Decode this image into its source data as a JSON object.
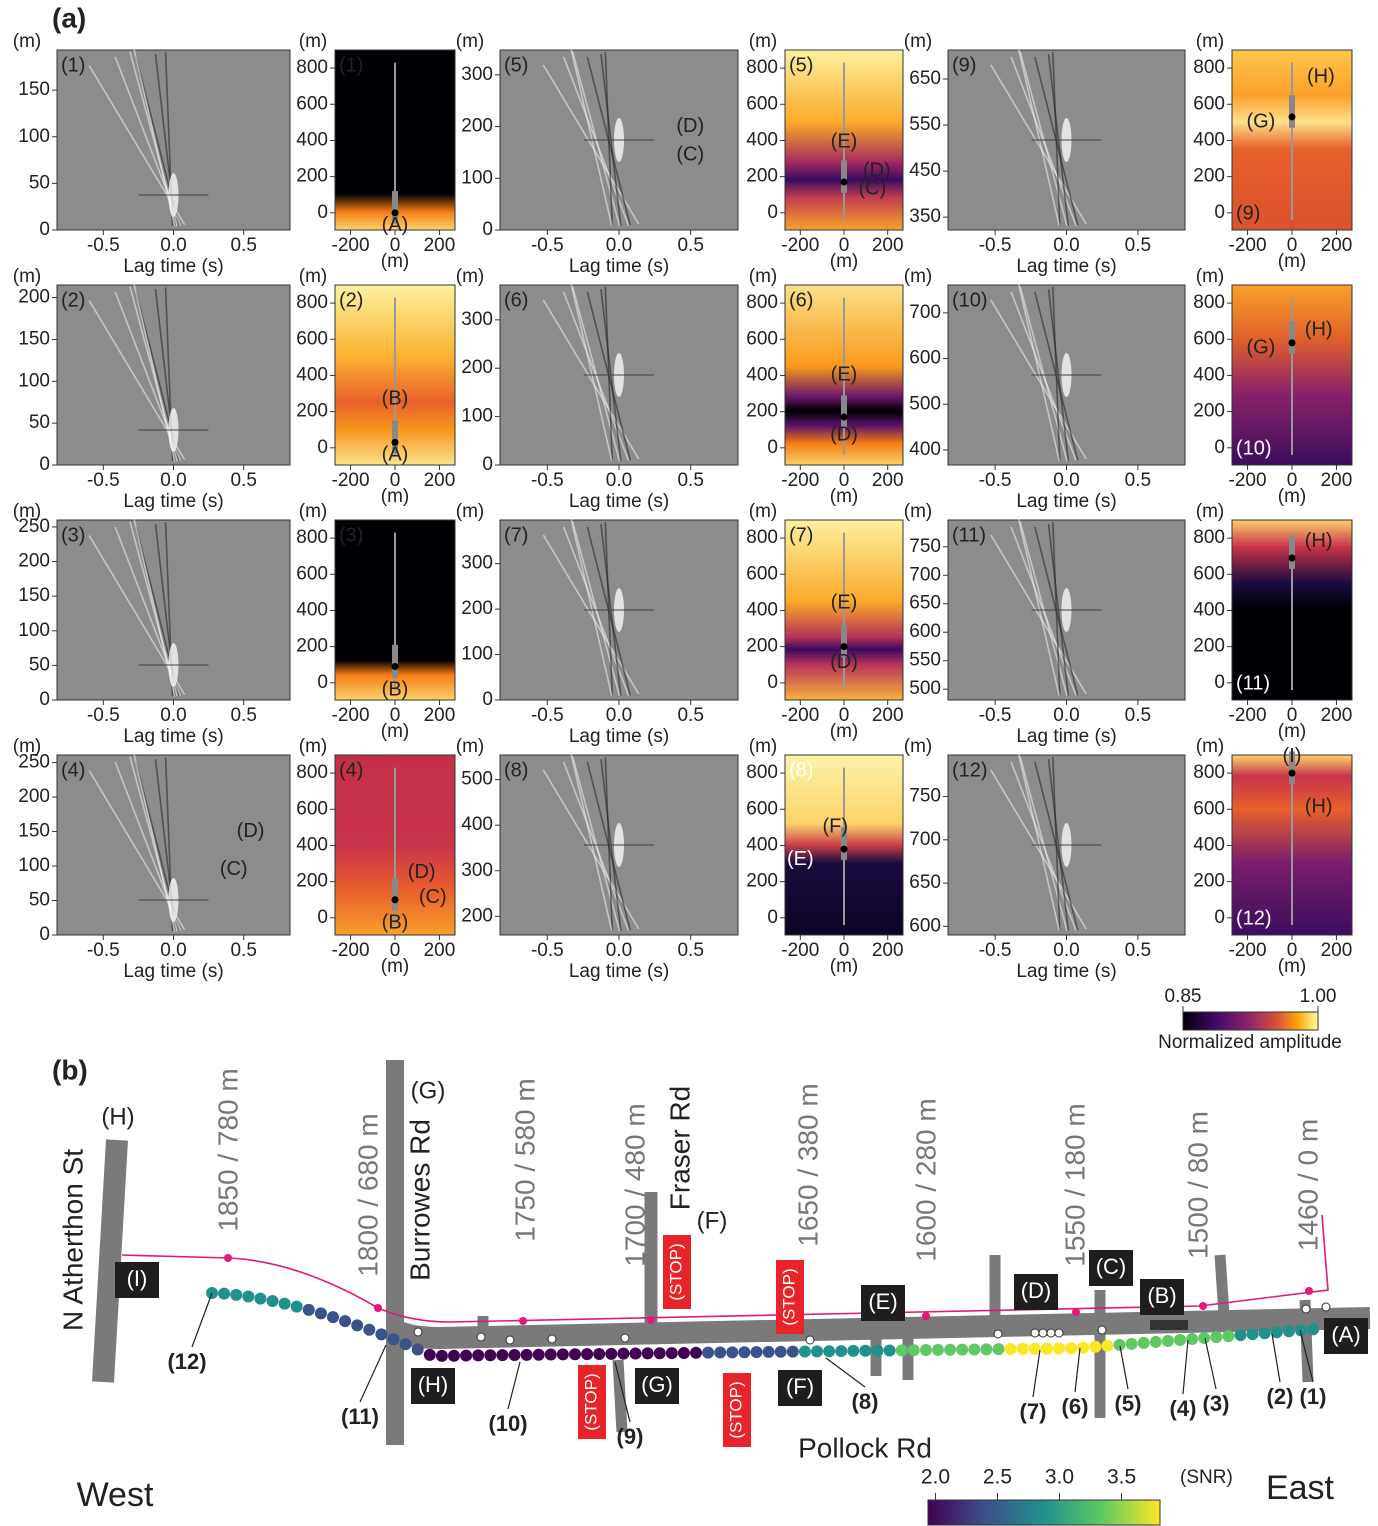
{
  "figure_a": {
    "label": "(a)",
    "x_label": "Lag time (s)",
    "unit": "(m)",
    "xlim": [
      -0.83,
      0.83
    ],
    "xticks": [
      {
        "value": -0.5,
        "label": "-0.5"
      },
      {
        "value": 0,
        "label": "0.0"
      },
      {
        "value": 0.5,
        "label": "0.5"
      }
    ],
    "map_xlim": [
      -270,
      270
    ],
    "map_xticks": [
      -200,
      0,
      200
    ],
    "map_ylim": [
      -95,
      900
    ],
    "map_yticks": [
      0,
      200,
      400,
      600,
      800
    ],
    "panels": [
      {
        "id": "(1)",
        "ylim": [
          0,
          193
        ],
        "yticks": [
          0,
          50,
          100,
          150
        ],
        "wave_labels": [],
        "map_labels": [
          "(A)"
        ]
      },
      {
        "id": "(2)",
        "ylim": [
          0,
          215
        ],
        "yticks": [
          0,
          50,
          100,
          150,
          200
        ],
        "wave_labels": [],
        "map_labels": [
          "(B)",
          "(A)"
        ]
      },
      {
        "id": "(3)",
        "ylim": [
          0,
          260
        ],
        "yticks": [
          0,
          50,
          100,
          150,
          200,
          250
        ],
        "wave_labels": [],
        "map_labels": [
          "(B)"
        ]
      },
      {
        "id": "(4)",
        "ylim": [
          0,
          261
        ],
        "yticks": [
          0,
          50,
          100,
          150,
          200,
          250
        ],
        "wave_labels": [
          "(D)",
          "(C)"
        ],
        "map_labels": [
          "(D)",
          "(C)",
          "(B)"
        ]
      },
      {
        "id": "(5)",
        "ylim": [
          0,
          348
        ],
        "yticks": [
          0,
          100,
          200,
          300
        ],
        "wave_labels": [
          "(D)",
          "(C)"
        ],
        "map_labels": [
          "(E)",
          "(D)",
          "(C)"
        ]
      },
      {
        "id": "(6)",
        "ylim": [
          0,
          372
        ],
        "yticks": [
          0,
          100,
          200,
          300
        ],
        "wave_labels": [],
        "map_labels": [
          "(E)",
          "(D)"
        ]
      },
      {
        "id": "(7)",
        "ylim": [
          0,
          396
        ],
        "yticks": [
          0,
          100,
          200,
          300
        ],
        "wave_labels": [],
        "map_labels": [
          "(E)",
          "(D)"
        ]
      },
      {
        "id": "(8)",
        "ylim": [
          159,
          554
        ],
        "yticks": [
          200,
          300,
          400,
          500
        ],
        "wave_labels": [],
        "map_labels": [
          "(F)",
          "(E)"
        ]
      },
      {
        "id": "(9)",
        "ylim": [
          322,
          713
        ],
        "yticks": [
          350,
          450,
          550,
          650
        ],
        "wave_labels": [],
        "map_labels": [
          "(H)",
          "(G)"
        ]
      },
      {
        "id": "(10)",
        "ylim": [
          367,
          761
        ],
        "yticks": [
          400,
          500,
          600,
          700
        ],
        "wave_labels": [],
        "map_labels": [
          "(H)",
          "(G)"
        ]
      },
      {
        "id": "(11)",
        "ylim": [
          481,
          797
        ],
        "yticks": [
          500,
          550,
          600,
          650,
          700,
          750
        ],
        "wave_labels": [],
        "map_labels": [
          "(H)"
        ]
      },
      {
        "id": "(12)",
        "ylim": [
          590,
          798
        ],
        "yticks": [
          600,
          650,
          700,
          750
        ],
        "wave_labels": [],
        "map_labels": [
          "(I)",
          "(H)"
        ]
      }
    ],
    "colorbar": {
      "ticks": [
        {
          "value": 0.85,
          "label": "0.85"
        },
        {
          "value": 1.0,
          "label": "1.00"
        }
      ],
      "label": "Normalized amplitude"
    }
  },
  "figure_b": {
    "label": "(b)",
    "street_names": [
      "N Atherthon St",
      "Burrowes Rd",
      "Fraser Rd",
      "Pollock Rd"
    ],
    "distance_marks": [
      "1850 / 780 m",
      "1800 / 680 m",
      "1750 / 580 m",
      "1700 / 480 m",
      "1650 / 380 m",
      "1600 / 280 m",
      "1550 / 180 m",
      "1500 / 80 m",
      "1460 / 0 m"
    ],
    "plain_labels": [
      "(H)",
      "(G)",
      "(F)"
    ],
    "boxed_labels": [
      "(I)",
      "(E)",
      "(D)",
      "(C)",
      "(B)",
      "(A)",
      "(H)",
      "(G)",
      "(F)"
    ],
    "stop_signs": [
      "(STOP)",
      "(STOP)",
      "(STOP)",
      "(STOP)"
    ],
    "station_labels": [
      "(12)",
      "(11)",
      "(10)",
      "(9)",
      "(8)",
      "(7)",
      "(6)",
      "(5)",
      "(4)",
      "(3)",
      "(2)",
      "(1)"
    ],
    "directions": [
      "West",
      "East"
    ],
    "snr_colorbar": {
      "xlim": [
        1.94,
        3.81
      ],
      "ticks": [
        {
          "value": 2.0,
          "label": "2.0"
        },
        {
          "value": 2.5,
          "label": "2.5"
        },
        {
          "value": 3.0,
          "label": "3.0"
        },
        {
          "value": 3.5,
          "label": "3.5"
        }
      ],
      "unit": "(SNR)"
    }
  }
}
